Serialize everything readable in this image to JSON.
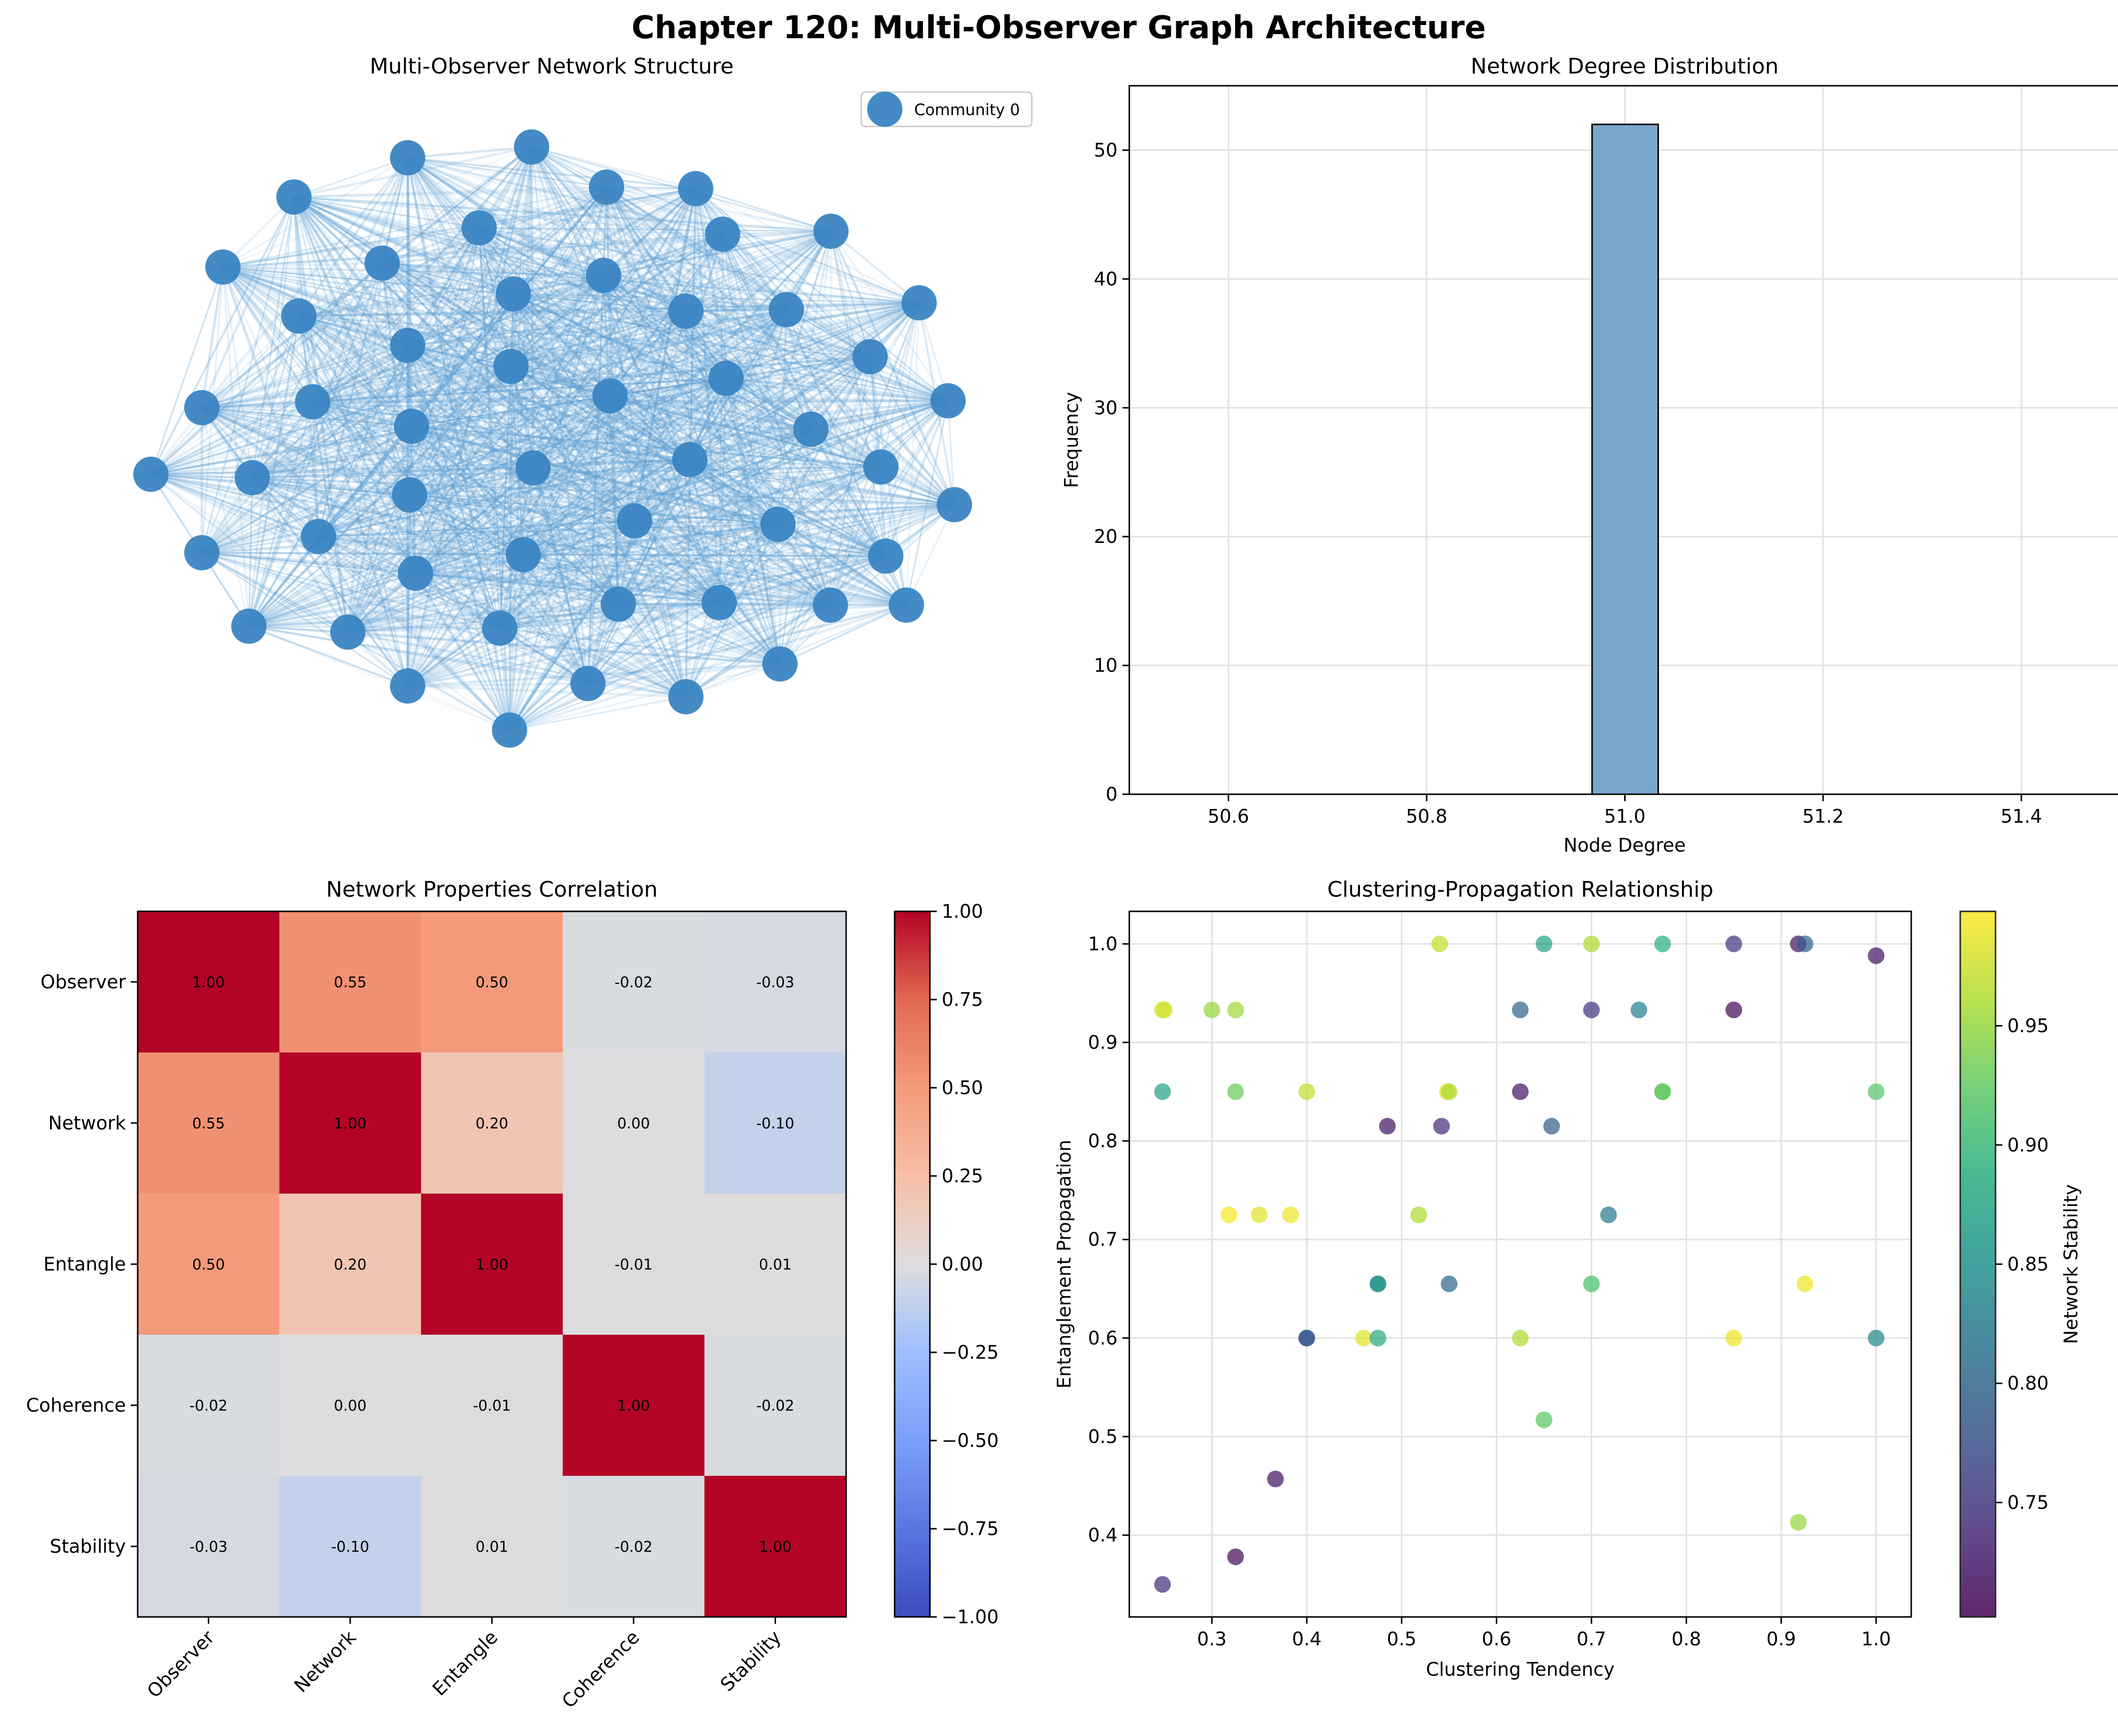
{
  "figure": {
    "title": "Chapter 120: Multi-Observer Graph Architecture"
  },
  "colors": {
    "node": "#3a85c3",
    "edge": "#5d9fd3",
    "bar_fill": "#7ba6cc",
    "grid": "#e1e1e1",
    "heat_pos": "#b40426",
    "heat_zero": "#dddddd",
    "heat_neg": "#3b4cc0"
  },
  "chart_data": [
    {
      "id": "network",
      "type": "network",
      "title": "Multi-Observer Network Structure",
      "legend": {
        "label": "Community 0",
        "placement": "top-right"
      },
      "node_count": 52,
      "community_count": 1
    },
    {
      "id": "degree",
      "type": "bar",
      "title": "Network Degree Distribution",
      "xlabel": "Node Degree",
      "ylabel": "Frequency",
      "xlim": [
        50.5,
        51.5
      ],
      "ylim": [
        0,
        55
      ],
      "xticks": [
        50.6,
        50.8,
        51.0,
        51.2,
        51.4
      ],
      "xtick_labels": [
        "50.6",
        "50.8",
        "51.0",
        "51.2",
        "51.4"
      ],
      "yticks": [
        0,
        10,
        20,
        30,
        40,
        50
      ],
      "bins": {
        "start": 50.5,
        "width": 0.0667,
        "count": 15
      },
      "bars": [
        {
          "x": 51.0,
          "value": 52
        }
      ],
      "grid": true
    },
    {
      "id": "correlation",
      "type": "heatmap",
      "title": "Network Properties Correlation",
      "labels": [
        "Observer",
        "Network",
        "Entangle",
        "Coherence",
        "Stability"
      ],
      "values": [
        [
          1.0,
          0.55,
          0.5,
          -0.02,
          -0.03
        ],
        [
          0.55,
          1.0,
          0.2,
          0.0,
          -0.1
        ],
        [
          0.5,
          0.2,
          1.0,
          -0.01,
          0.01
        ],
        [
          -0.02,
          0.0,
          -0.01,
          1.0,
          -0.02
        ],
        [
          -0.03,
          -0.1,
          0.01,
          -0.02,
          1.0
        ]
      ],
      "value_labels": [
        [
          "1.00",
          "0.55",
          "0.50",
          "-0.02",
          "-0.03"
        ],
        [
          "0.55",
          "1.00",
          "0.20",
          "0.00",
          "-0.10"
        ],
        [
          "0.50",
          "0.20",
          "1.00",
          "-0.01",
          "0.01"
        ],
        [
          "-0.02",
          "0.00",
          "-0.01",
          "1.00",
          "-0.02"
        ],
        [
          "-0.03",
          "-0.10",
          "0.01",
          "-0.02",
          "1.00"
        ]
      ],
      "colorbar": {
        "range": [
          -1.0,
          1.0
        ],
        "ticks": [
          -1.0,
          -0.75,
          -0.5,
          -0.25,
          0.0,
          0.25,
          0.5,
          0.75,
          1.0
        ],
        "tick_labels": [
          "−1.00",
          "−0.75",
          "−0.50",
          "−0.25",
          "0.00",
          "0.25",
          "0.50",
          "0.75",
          "1.00"
        ],
        "colormap": "coolwarm"
      }
    },
    {
      "id": "clustering",
      "type": "scatter",
      "title": "Clustering-Propagation Relationship",
      "xlabel": "Clustering Tendency",
      "ylabel": "Entanglement Propagation",
      "xlim": [
        0.213,
        1.037
      ],
      "ylim": [
        0.317,
        1.033
      ],
      "xticks": [
        0.3,
        0.4,
        0.5,
        0.6,
        0.7,
        0.8,
        0.9,
        1.0
      ],
      "xtick_labels": [
        "0.3",
        "0.4",
        "0.5",
        "0.6",
        "0.7",
        "0.8",
        "0.9",
        "1.0"
      ],
      "yticks": [
        0.4,
        0.5,
        0.6,
        0.7,
        0.8,
        0.9,
        1.0
      ],
      "ytick_labels": [
        "0.4",
        "0.5",
        "0.6",
        "0.7",
        "0.8",
        "0.9",
        "1.0"
      ],
      "grid": true,
      "colorbar": {
        "label": "Network Stability",
        "range": [
          0.702,
          0.998
        ],
        "ticks": [
          0.75,
          0.8,
          0.85,
          0.9,
          0.95
        ],
        "tick_labels": [
          "0.75",
          "0.80",
          "0.85",
          "0.90",
          "0.95"
        ],
        "colormap": "viridis"
      },
      "points": [
        {
          "x": 0.248,
          "y": 0.933,
          "c": 0.975
        },
        {
          "x": 0.25,
          "y": 0.933,
          "c": 0.98
        },
        {
          "x": 0.3,
          "y": 0.933,
          "c": 0.95
        },
        {
          "x": 0.325,
          "y": 0.933,
          "c": 0.955
        },
        {
          "x": 0.248,
          "y": 0.85,
          "c": 0.87
        },
        {
          "x": 0.325,
          "y": 0.85,
          "c": 0.93
        },
        {
          "x": 0.4,
          "y": 0.85,
          "c": 0.97
        },
        {
          "x": 0.548,
          "y": 0.85,
          "c": 0.99
        },
        {
          "x": 0.55,
          "y": 0.85,
          "c": 0.96
        },
        {
          "x": 0.625,
          "y": 0.85,
          "c": 0.72
        },
        {
          "x": 0.775,
          "y": 0.85,
          "c": 0.9
        },
        {
          "x": 0.775,
          "y": 0.85,
          "c": 0.93
        },
        {
          "x": 1.0,
          "y": 0.85,
          "c": 0.92
        },
        {
          "x": 0.54,
          "y": 1.0,
          "c": 0.97
        },
        {
          "x": 0.65,
          "y": 1.0,
          "c": 0.87
        },
        {
          "x": 0.7,
          "y": 1.0,
          "c": 0.96
        },
        {
          "x": 0.775,
          "y": 1.0,
          "c": 0.89
        },
        {
          "x": 0.85,
          "y": 1.0,
          "c": 0.75
        },
        {
          "x": 0.918,
          "y": 1.0,
          "c": 0.72
        },
        {
          "x": 0.925,
          "y": 1.0,
          "c": 0.79
        },
        {
          "x": 1.0,
          "y": 0.988,
          "c": 0.72
        },
        {
          "x": 0.625,
          "y": 0.933,
          "c": 0.8
        },
        {
          "x": 0.7,
          "y": 0.933,
          "c": 0.75
        },
        {
          "x": 0.75,
          "y": 0.933,
          "c": 0.83
        },
        {
          "x": 0.85,
          "y": 0.933,
          "c": 0.71
        },
        {
          "x": 0.485,
          "y": 0.815,
          "c": 0.72
        },
        {
          "x": 0.542,
          "y": 0.815,
          "c": 0.74
        },
        {
          "x": 0.658,
          "y": 0.815,
          "c": 0.79
        },
        {
          "x": 0.318,
          "y": 0.725,
          "c": 0.995
        },
        {
          "x": 0.35,
          "y": 0.725,
          "c": 0.985
        },
        {
          "x": 0.383,
          "y": 0.725,
          "c": 0.99
        },
        {
          "x": 0.518,
          "y": 0.725,
          "c": 0.96
        },
        {
          "x": 0.718,
          "y": 0.725,
          "c": 0.82
        },
        {
          "x": 0.475,
          "y": 0.655,
          "c": 0.86
        },
        {
          "x": 0.475,
          "y": 0.655,
          "c": 0.85
        },
        {
          "x": 0.55,
          "y": 0.655,
          "c": 0.8
        },
        {
          "x": 0.7,
          "y": 0.655,
          "c": 0.91
        },
        {
          "x": 0.925,
          "y": 0.655,
          "c": 0.99
        },
        {
          "x": 0.4,
          "y": 0.6,
          "c": 0.79
        },
        {
          "x": 0.4,
          "y": 0.6,
          "c": 0.78
        },
        {
          "x": 0.46,
          "y": 0.6,
          "c": 0.985
        },
        {
          "x": 0.475,
          "y": 0.6,
          "c": 0.88
        },
        {
          "x": 0.625,
          "y": 0.6,
          "c": 0.96
        },
        {
          "x": 0.85,
          "y": 0.6,
          "c": 0.99
        },
        {
          "x": 1.0,
          "y": 0.6,
          "c": 0.84
        },
        {
          "x": 0.65,
          "y": 0.517,
          "c": 0.92
        },
        {
          "x": 0.367,
          "y": 0.457,
          "c": 0.72
        },
        {
          "x": 0.918,
          "y": 0.413,
          "c": 0.95
        },
        {
          "x": 0.325,
          "y": 0.378,
          "c": 0.71
        },
        {
          "x": 0.248,
          "y": 0.35,
          "c": 0.74
        }
      ]
    }
  ]
}
